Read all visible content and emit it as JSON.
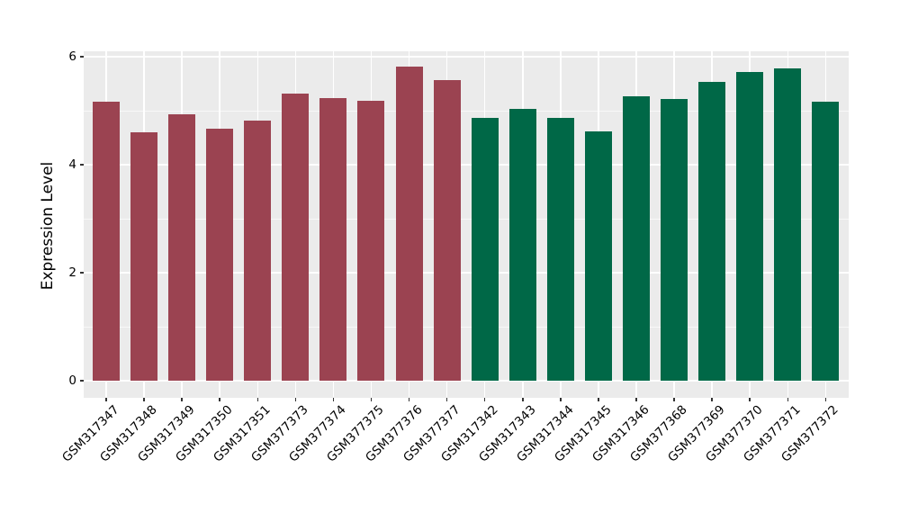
{
  "chart_data": {
    "type": "bar",
    "title": "",
    "xlabel": "",
    "ylabel": "Expression Level",
    "ylim": [
      0,
      6.1
    ],
    "ytick_labels": [
      "0",
      "2",
      "4",
      "6"
    ],
    "ytick_values": [
      0,
      2,
      4,
      6
    ],
    "yminor_values": [
      1,
      3,
      5
    ],
    "grid": "on",
    "legend_position": "none",
    "categories": [
      "GSM317347",
      "GSM317348",
      "GSM317349",
      "GSM317350",
      "GSM317351",
      "GSM377373",
      "GSM377374",
      "GSM377375",
      "GSM377376",
      "GSM377377",
      "GSM317342",
      "GSM317343",
      "GSM317344",
      "GSM317345",
      "GSM317346",
      "GSM377368",
      "GSM377369",
      "GSM377370",
      "GSM377371",
      "GSM377372"
    ],
    "values": [
      5.16,
      4.6,
      4.93,
      4.67,
      4.82,
      5.31,
      5.24,
      5.19,
      5.82,
      5.56,
      4.87,
      5.03,
      4.86,
      4.61,
      5.27,
      5.22,
      5.53,
      5.72,
      5.78,
      5.16
    ],
    "bar_groups": [
      0,
      0,
      0,
      0,
      0,
      0,
      0,
      0,
      0,
      0,
      1,
      1,
      1,
      1,
      1,
      1,
      1,
      1,
      1,
      1
    ],
    "group_colors": [
      "#9B4351",
      "#006847"
    ],
    "colors": {
      "panel_background": "#EBEBEB",
      "gridline": "#FFFFFF",
      "tick_mark": "#333333",
      "axis_text": "#000000"
    }
  }
}
